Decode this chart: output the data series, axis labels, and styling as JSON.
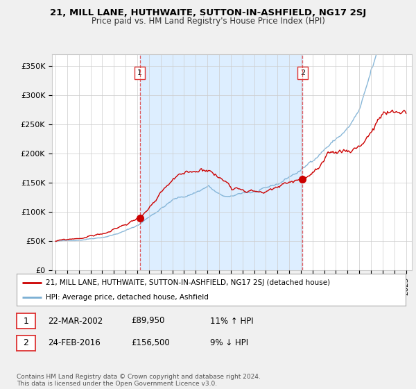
{
  "title": "21, MILL LANE, HUTHWAITE, SUTTON-IN-ASHFIELD, NG17 2SJ",
  "subtitle": "Price paid vs. HM Land Registry's House Price Index (HPI)",
  "ylabel_ticks": [
    "£0",
    "£50K",
    "£100K",
    "£150K",
    "£200K",
    "£250K",
    "£300K",
    "£350K"
  ],
  "ytick_values": [
    0,
    50000,
    100000,
    150000,
    200000,
    250000,
    300000,
    350000
  ],
  "ylim": [
    0,
    370000
  ],
  "xlim_start": 1994.7,
  "xlim_end": 2025.5,
  "sale1_date": 2002.22,
  "sale1_price": 89950,
  "sale2_date": 2016.15,
  "sale2_price": 156500,
  "hpi_color": "#7bafd4",
  "price_color": "#cc0000",
  "vline_color": "#dd3333",
  "shade_color": "#ddeeff",
  "background_color": "#f0f0f0",
  "plot_bg_color": "#ffffff",
  "legend_label_price": "21, MILL LANE, HUTHWAITE, SUTTON-IN-ASHFIELD, NG17 2SJ (detached house)",
  "legend_label_hpi": "HPI: Average price, detached house, Ashfield",
  "table_row1": [
    "1",
    "22-MAR-2002",
    "£89,950",
    "11% ↑ HPI"
  ],
  "table_row2": [
    "2",
    "24-FEB-2016",
    "£156,500",
    "9% ↓ HPI"
  ],
  "copyright_text": "Contains HM Land Registry data © Crown copyright and database right 2024.\nThis data is licensed under the Open Government Licence v3.0.",
  "xtick_years": [
    1995,
    1996,
    1997,
    1998,
    1999,
    2000,
    2001,
    2002,
    2003,
    2004,
    2005,
    2006,
    2007,
    2008,
    2009,
    2010,
    2011,
    2012,
    2013,
    2014,
    2015,
    2016,
    2017,
    2018,
    2019,
    2020,
    2021,
    2022,
    2023,
    2024,
    2025
  ]
}
